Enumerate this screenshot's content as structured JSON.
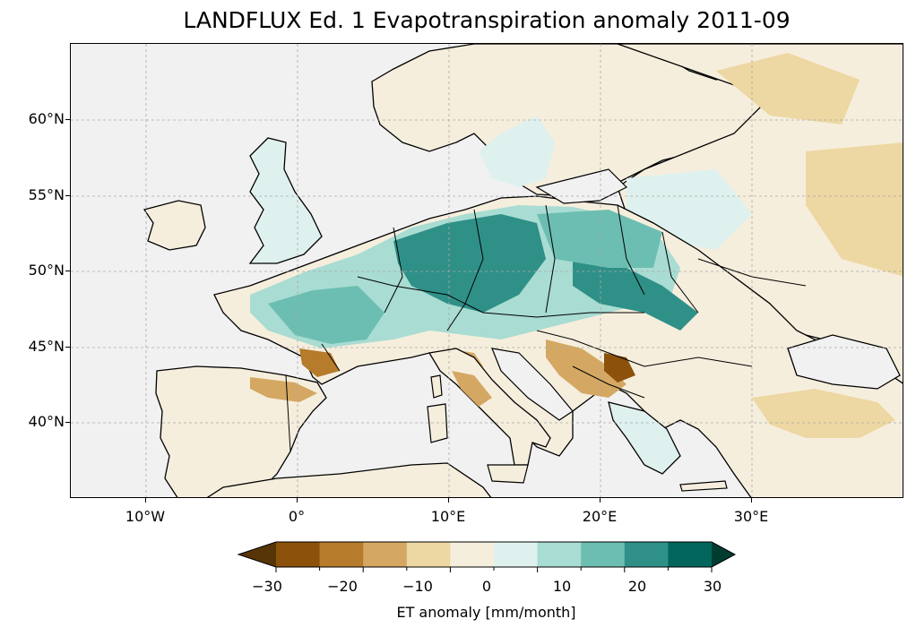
{
  "title": "LANDFLUX Ed. 1 Evapotranspiration anomaly 2011-09",
  "lat_labels": [
    "60°N",
    "55°N",
    "50°N",
    "45°N",
    "40°N"
  ],
  "lon_labels": [
    "10°W",
    "0°",
    "10°E",
    "20°E",
    "30°E"
  ],
  "colorbar": {
    "label": "ET anomaly [mm/month]",
    "ticks": [
      "−30",
      "−20",
      "−10",
      "0",
      "10",
      "20",
      "30"
    ],
    "levels": [
      -30,
      -25,
      -20,
      -15,
      -10,
      -5,
      0,
      5,
      10,
      15,
      20,
      25,
      30
    ],
    "colors": [
      "#573507",
      "#8c510a",
      "#b67b2b",
      "#d4a863",
      "#edd7a2",
      "#f6eedd",
      "#def1ee",
      "#a9dcd2",
      "#6cbeb2",
      "#2f9088",
      "#02665c",
      "#003c30"
    ]
  },
  "map_colors": {
    "ocean": "#f1f1f1",
    "dry_land": "#f6eedd",
    "moist_land": "#a9dcd2",
    "very_moist": "#2f9088",
    "dry_patch": "#b67b2b",
    "border": "#000000"
  },
  "map_extent": {
    "lon_min": -15,
    "lon_max": 40,
    "lat_min": 35,
    "lat_max": 65
  }
}
